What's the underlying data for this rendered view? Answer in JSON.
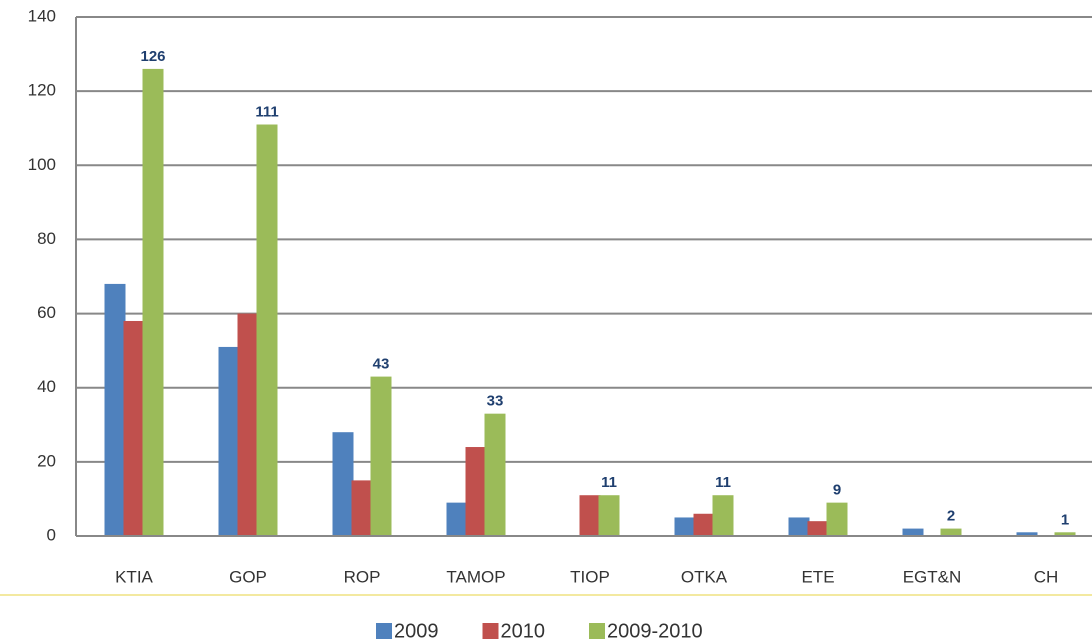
{
  "chart_data": {
    "type": "bar",
    "categories": [
      "KTIA",
      "GOP",
      "ROP",
      "TAMOP",
      "TIOP",
      "OTKA",
      "ETE",
      "EGT&N",
      "CH"
    ],
    "series": [
      {
        "name": "2009",
        "color": "#4f81bd",
        "values": [
          68,
          51,
          28,
          9,
          0,
          5,
          5,
          2,
          1
        ]
      },
      {
        "name": "2010",
        "color": "#c0504d",
        "values": [
          58,
          60,
          15,
          24,
          11,
          6,
          4,
          0,
          0
        ]
      },
      {
        "name": "2009-2010",
        "color": "#9bbb59",
        "values": [
          126,
          111,
          43,
          33,
          11,
          11,
          9,
          2,
          1
        ],
        "value_labels": [
          "126",
          "111",
          "43",
          "33",
          "11",
          "11",
          "9",
          "2",
          "1"
        ]
      }
    ],
    "ylim": [
      0,
      140
    ],
    "yticks": [
      0,
      20,
      40,
      60,
      80,
      100,
      120,
      140
    ],
    "grid": true,
    "legend": "bottom"
  }
}
